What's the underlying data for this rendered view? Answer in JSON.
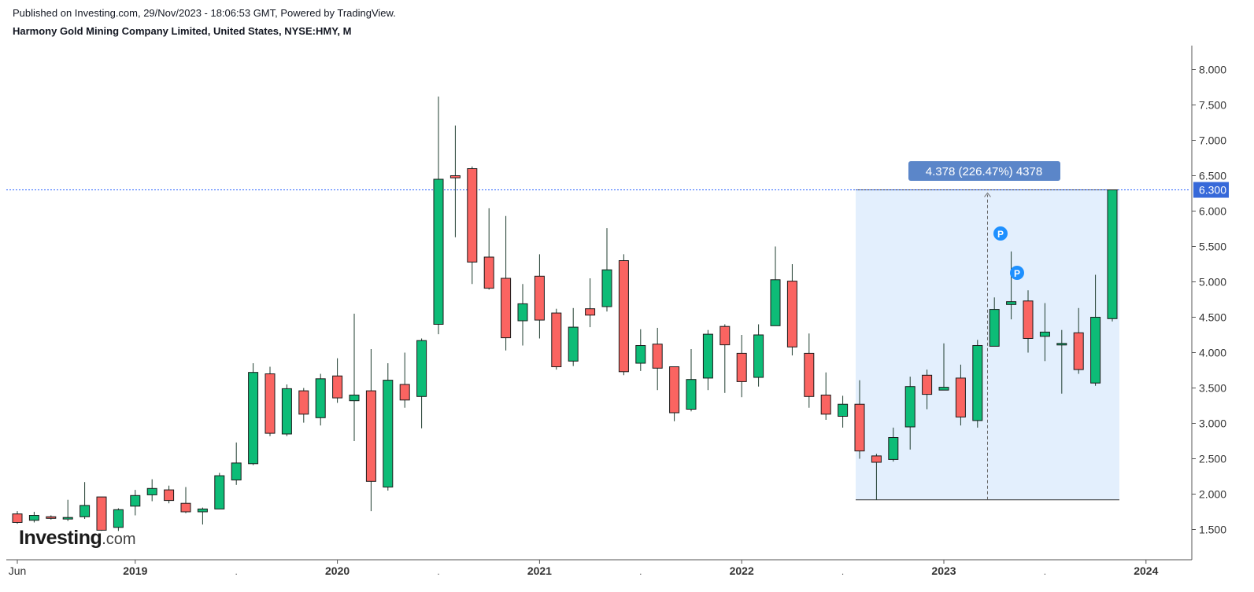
{
  "header": {
    "published": "Published on Investing.com, 29/Nov/2023 - 18:06:53 GMT, Powered by TradingView.",
    "symbol": "Harmony Gold Mining Company Limited, United States, NYSE:HMY, M"
  },
  "watermark": {
    "brand": "Investing",
    "suffix": ".com"
  },
  "colors": {
    "up": "#0dbc77",
    "down": "#fa6461",
    "measure_fill": "#e3effd",
    "price_line": "#2962ff",
    "price_tag": "#3769d9",
    "callout": "#5b86c9",
    "marker": "#1e90ff"
  },
  "chart_data": {
    "type": "candlestick",
    "interval": "M",
    "ylim": [
      1.2,
      8.3
    ],
    "y_ticks": [
      "1.500",
      "2.000",
      "2.500",
      "3.000",
      "3.500",
      "4.000",
      "4.500",
      "5.000",
      "5.500",
      "6.000",
      "6.500",
      "7.000",
      "7.500",
      "8.000"
    ],
    "x_labels": [
      "Jun",
      "2019",
      "2020",
      "2021",
      "2022",
      "2023",
      "2024"
    ],
    "last_price": "6.300",
    "measure_label": "4.378 (226.47%) 4378",
    "markers": [
      "P",
      "P"
    ],
    "candles": [
      {
        "date": "2018-06",
        "o": 1.72,
        "h": 1.76,
        "l": 1.58,
        "c": 1.6
      },
      {
        "date": "2018-07",
        "o": 1.63,
        "h": 1.75,
        "l": 1.6,
        "c": 1.7
      },
      {
        "date": "2018-08",
        "o": 1.68,
        "h": 1.7,
        "l": 1.64,
        "c": 1.66
      },
      {
        "date": "2018-09",
        "o": 1.65,
        "h": 1.92,
        "l": 1.62,
        "c": 1.67
      },
      {
        "date": "2018-10",
        "o": 1.68,
        "h": 2.17,
        "l": 1.65,
        "c": 1.84
      },
      {
        "date": "2018-11",
        "o": 1.96,
        "h": 1.96,
        "l": 1.48,
        "c": 1.49
      },
      {
        "date": "2018-12",
        "o": 1.53,
        "h": 1.8,
        "l": 1.48,
        "c": 1.78
      },
      {
        "date": "2019-01",
        "o": 1.83,
        "h": 2.06,
        "l": 1.7,
        "c": 1.98
      },
      {
        "date": "2019-02",
        "o": 1.99,
        "h": 2.21,
        "l": 1.9,
        "c": 2.08
      },
      {
        "date": "2019-03",
        "o": 2.06,
        "h": 2.12,
        "l": 1.87,
        "c": 1.91
      },
      {
        "date": "2019-04",
        "o": 1.87,
        "h": 2.1,
        "l": 1.73,
        "c": 1.75
      },
      {
        "date": "2019-05",
        "o": 1.75,
        "h": 1.81,
        "l": 1.57,
        "c": 1.79
      },
      {
        "date": "2019-06",
        "o": 1.79,
        "h": 2.3,
        "l": 1.79,
        "c": 2.26
      },
      {
        "date": "2019-07",
        "o": 2.2,
        "h": 2.73,
        "l": 2.13,
        "c": 2.44
      },
      {
        "date": "2019-08",
        "o": 2.43,
        "h": 3.85,
        "l": 2.41,
        "c": 3.72
      },
      {
        "date": "2019-09",
        "o": 3.7,
        "h": 3.8,
        "l": 2.82,
        "c": 2.86
      },
      {
        "date": "2019-10",
        "o": 2.85,
        "h": 3.55,
        "l": 2.82,
        "c": 3.49
      },
      {
        "date": "2019-11",
        "o": 3.46,
        "h": 3.5,
        "l": 3.01,
        "c": 3.13
      },
      {
        "date": "2019-12",
        "o": 3.08,
        "h": 3.7,
        "l": 2.97,
        "c": 3.63
      },
      {
        "date": "2020-01",
        "o": 3.67,
        "h": 3.92,
        "l": 3.29,
        "c": 3.36
      },
      {
        "date": "2020-02",
        "o": 3.32,
        "h": 4.55,
        "l": 2.75,
        "c": 3.4
      },
      {
        "date": "2020-03",
        "o": 3.46,
        "h": 4.05,
        "l": 1.76,
        "c": 2.18
      },
      {
        "date": "2020-04",
        "o": 2.1,
        "h": 3.85,
        "l": 2.05,
        "c": 3.61
      },
      {
        "date": "2020-05",
        "o": 3.55,
        "h": 4.0,
        "l": 3.22,
        "c": 3.33
      },
      {
        "date": "2020-06",
        "o": 3.38,
        "h": 4.2,
        "l": 2.93,
        "c": 4.17
      },
      {
        "date": "2020-07",
        "o": 4.4,
        "h": 7.62,
        "l": 4.26,
        "c": 6.45
      },
      {
        "date": "2020-08",
        "o": 6.5,
        "h": 7.21,
        "l": 5.63,
        "c": 6.47
      },
      {
        "date": "2020-09",
        "o": 6.6,
        "h": 6.63,
        "l": 4.97,
        "c": 5.28
      },
      {
        "date": "2020-10",
        "o": 5.35,
        "h": 6.04,
        "l": 4.89,
        "c": 4.91
      },
      {
        "date": "2020-11",
        "o": 5.05,
        "h": 5.93,
        "l": 4.03,
        "c": 4.21
      },
      {
        "date": "2020-12",
        "o": 4.45,
        "h": 4.97,
        "l": 4.1,
        "c": 4.69
      },
      {
        "date": "2021-01",
        "o": 5.08,
        "h": 5.39,
        "l": 4.2,
        "c": 4.46
      },
      {
        "date": "2021-02",
        "o": 4.56,
        "h": 4.62,
        "l": 3.76,
        "c": 3.8
      },
      {
        "date": "2021-03",
        "o": 3.88,
        "h": 4.63,
        "l": 3.81,
        "c": 4.36
      },
      {
        "date": "2021-04",
        "o": 4.62,
        "h": 5.05,
        "l": 4.36,
        "c": 4.53
      },
      {
        "date": "2021-05",
        "o": 4.65,
        "h": 5.76,
        "l": 4.58,
        "c": 5.17
      },
      {
        "date": "2021-06",
        "o": 5.3,
        "h": 5.39,
        "l": 3.68,
        "c": 3.73
      },
      {
        "date": "2021-07",
        "o": 3.85,
        "h": 4.33,
        "l": 3.74,
        "c": 4.1
      },
      {
        "date": "2021-08",
        "o": 4.12,
        "h": 4.35,
        "l": 3.47,
        "c": 3.78
      },
      {
        "date": "2021-09",
        "o": 3.8,
        "h": 3.79,
        "l": 3.03,
        "c": 3.15
      },
      {
        "date": "2021-10",
        "o": 3.2,
        "h": 4.05,
        "l": 3.17,
        "c": 3.62
      },
      {
        "date": "2021-11",
        "o": 3.64,
        "h": 4.32,
        "l": 3.47,
        "c": 4.26
      },
      {
        "date": "2021-12",
        "o": 4.37,
        "h": 4.4,
        "l": 3.43,
        "c": 4.11
      },
      {
        "date": "2022-01",
        "o": 3.99,
        "h": 4.25,
        "l": 3.37,
        "c": 3.59
      },
      {
        "date": "2022-02",
        "o": 3.65,
        "h": 4.4,
        "l": 3.52,
        "c": 4.25
      },
      {
        "date": "2022-03",
        "o": 4.38,
        "h": 5.5,
        "l": 4.38,
        "c": 5.03
      },
      {
        "date": "2022-04",
        "o": 5.01,
        "h": 5.25,
        "l": 3.96,
        "c": 4.08
      },
      {
        "date": "2022-05",
        "o": 3.99,
        "h": 4.27,
        "l": 3.22,
        "c": 3.38
      },
      {
        "date": "2022-06",
        "o": 3.4,
        "h": 3.72,
        "l": 3.05,
        "c": 3.13
      },
      {
        "date": "2022-07",
        "o": 3.1,
        "h": 3.39,
        "l": 2.94,
        "c": 3.27
      },
      {
        "date": "2022-08",
        "o": 3.27,
        "h": 3.61,
        "l": 2.5,
        "c": 2.61
      },
      {
        "date": "2022-09",
        "o": 2.54,
        "h": 2.57,
        "l": 1.92,
        "c": 2.45
      },
      {
        "date": "2022-10",
        "o": 2.49,
        "h": 2.94,
        "l": 2.46,
        "c": 2.8
      },
      {
        "date": "2022-11",
        "o": 2.95,
        "h": 3.66,
        "l": 2.63,
        "c": 3.52
      },
      {
        "date": "2022-12",
        "o": 3.68,
        "h": 3.76,
        "l": 3.2,
        "c": 3.41
      },
      {
        "date": "2023-01",
        "o": 3.47,
        "h": 4.13,
        "l": 3.47,
        "c": 3.51
      },
      {
        "date": "2023-02",
        "o": 3.64,
        "h": 3.83,
        "l": 2.97,
        "c": 3.09
      },
      {
        "date": "2023-03",
        "o": 3.04,
        "h": 4.18,
        "l": 2.94,
        "c": 4.1
      },
      {
        "date": "2023-04",
        "o": 4.09,
        "h": 4.78,
        "l": 4.09,
        "c": 4.61
      },
      {
        "date": "2023-05",
        "o": 4.68,
        "h": 5.43,
        "l": 4.47,
        "c": 4.72
      },
      {
        "date": "2023-06",
        "o": 4.73,
        "h": 4.88,
        "l": 4.0,
        "c": 4.2
      },
      {
        "date": "2023-07",
        "o": 4.23,
        "h": 4.7,
        "l": 3.88,
        "c": 4.29
      },
      {
        "date": "2023-08",
        "o": 4.13,
        "h": 4.32,
        "l": 3.42,
        "c": 4.13
      },
      {
        "date": "2023-09",
        "o": 4.28,
        "h": 4.63,
        "l": 3.7,
        "c": 3.76
      },
      {
        "date": "2023-10",
        "o": 3.57,
        "h": 5.1,
        "l": 3.53,
        "c": 4.5
      },
      {
        "date": "2023-11",
        "o": 4.48,
        "h": 6.3,
        "l": 4.44,
        "c": 6.3
      }
    ]
  }
}
